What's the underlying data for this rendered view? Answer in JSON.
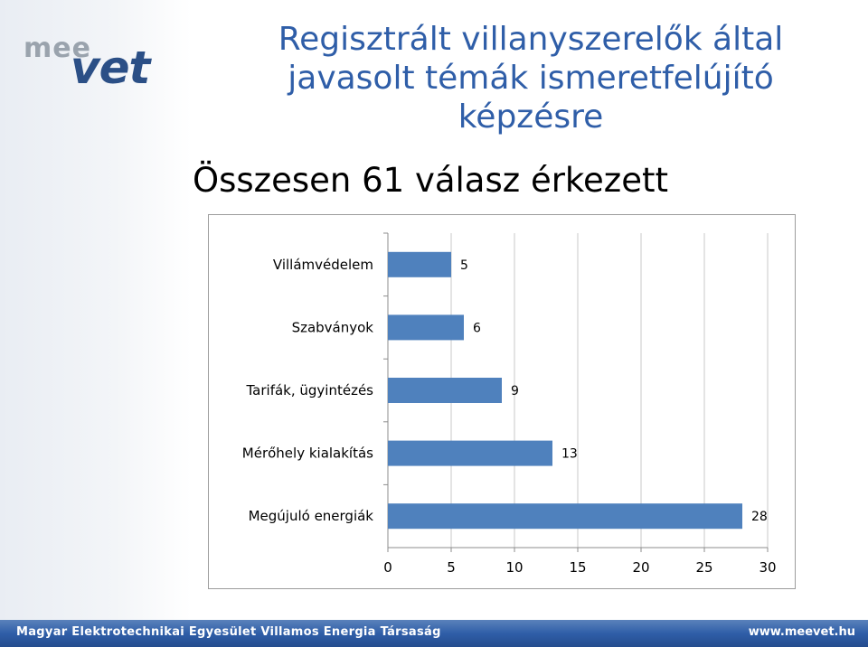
{
  "logo": {
    "part1": "mee",
    "part2": "vet"
  },
  "slide": {
    "title_lines": [
      "Regisztrált villanyszerelők által",
      "javasolt témák ismeretfelújító",
      "képzésre"
    ],
    "subtitle": "Összesen 61 válasz érkezett"
  },
  "footer": {
    "left": "Magyar Elektrotechnikai Egyesület Villamos Energia Társaság",
    "right": "www.meevet.hu"
  },
  "colors": {
    "bar": "#4f81bd",
    "title": "#2f5ea8",
    "footer": "#2f5ea8",
    "grid": "#c8c8c8"
  },
  "chart_data": {
    "type": "bar",
    "orientation": "horizontal",
    "categories": [
      "Villámvédelem",
      "Szabványok",
      "Tarifák, ügyintézés",
      "Mérőhely kialakítás",
      "Megújuló energiák"
    ],
    "values": [
      5,
      6,
      9,
      13,
      28
    ],
    "data_labels": [
      "5",
      "6",
      "9",
      "13",
      "28"
    ],
    "xlim": [
      0,
      30
    ],
    "xticks": [
      0,
      5,
      10,
      15,
      20,
      25,
      30
    ],
    "grid": true,
    "legend": "none"
  }
}
